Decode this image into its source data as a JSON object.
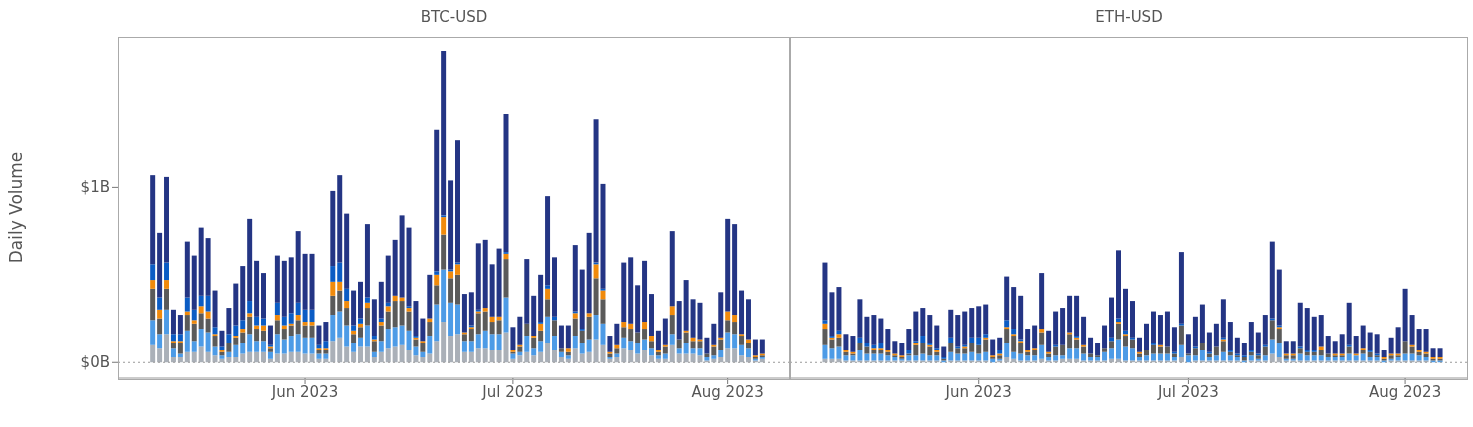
{
  "chart_data": [
    {
      "type": "bar",
      "title": "BTC-USD",
      "ylabel": "Daily Volume",
      "stacked": true,
      "x": [
        "2023-05-10",
        "2023-05-11",
        "2023-05-12",
        "2023-05-13",
        "2023-05-14",
        "2023-05-15",
        "2023-05-16",
        "2023-05-17",
        "2023-05-18",
        "2023-05-19",
        "2023-05-20",
        "2023-05-21",
        "2023-05-22",
        "2023-05-23",
        "2023-05-24",
        "2023-05-25",
        "2023-05-26",
        "2023-05-27",
        "2023-05-28",
        "2023-05-29",
        "2023-05-30",
        "2023-05-31",
        "2023-06-01",
        "2023-06-02",
        "2023-06-03",
        "2023-06-04",
        "2023-06-05",
        "2023-06-06",
        "2023-06-07",
        "2023-06-08",
        "2023-06-09",
        "2023-06-10",
        "2023-06-11",
        "2023-06-12",
        "2023-06-13",
        "2023-06-14",
        "2023-06-15",
        "2023-06-16",
        "2023-06-17",
        "2023-06-18",
        "2023-06-19",
        "2023-06-20",
        "2023-06-21",
        "2023-06-22",
        "2023-06-23",
        "2023-06-24",
        "2023-06-25",
        "2023-06-26",
        "2023-06-27",
        "2023-06-28",
        "2023-06-29",
        "2023-06-30",
        "2023-07-01",
        "2023-07-02",
        "2023-07-03",
        "2023-07-04",
        "2023-07-05",
        "2023-07-06",
        "2023-07-07",
        "2023-07-08",
        "2023-07-09",
        "2023-07-10",
        "2023-07-11",
        "2023-07-12",
        "2023-07-13",
        "2023-07-14",
        "2023-07-15",
        "2023-07-16",
        "2023-07-17",
        "2023-07-18",
        "2023-07-19",
        "2023-07-20",
        "2023-07-21",
        "2023-07-22",
        "2023-07-23",
        "2023-07-24",
        "2023-07-25",
        "2023-07-26",
        "2023-07-27",
        "2023-07-28",
        "2023-07-29",
        "2023-07-30",
        "2023-07-31",
        "2023-08-01",
        "2023-08-02",
        "2023-08-03",
        "2023-08-04",
        "2023-08-05",
        "2023-08-06"
      ],
      "series": [
        {
          "color": "#aab0b8",
          "values": [
            0.1,
            0.08,
            0.16,
            0.03,
            0.03,
            0.06,
            0.06,
            0.09,
            0.06,
            0.04,
            0.02,
            0.03,
            0.03,
            0.05,
            0.06,
            0.06,
            0.06,
            0.02,
            0.05,
            0.05,
            0.06,
            0.06,
            0.05,
            0.05,
            0.02,
            0.02,
            0.12,
            0.14,
            0.09,
            0.06,
            0.09,
            0.09,
            0.03,
            0.06,
            0.08,
            0.09,
            0.1,
            0.07,
            0.04,
            0.03,
            0.05,
            0.12,
            0.23,
            0.15,
            0.16,
            0.06,
            0.06,
            0.08,
            0.08,
            0.07,
            0.07,
            0.17,
            0.02,
            0.04,
            0.06,
            0.04,
            0.06,
            0.11,
            0.07,
            0.03,
            0.02,
            0.08,
            0.05,
            0.06,
            0.13,
            0.1,
            0.02,
            0.03,
            0.08,
            0.07,
            0.05,
            0.07,
            0.04,
            0.02,
            0.02,
            0.1,
            0.05,
            0.05,
            0.05,
            0.04,
            0.01,
            0.02,
            0.03,
            0.08,
            0.08,
            0.04,
            0.03,
            0.01,
            0.02
          ]
        },
        {
          "color": "#4d9be6",
          "values": [
            0.14,
            0.08,
            0.14,
            0.05,
            0.02,
            0.12,
            0.06,
            0.1,
            0.11,
            0.05,
            0.02,
            0.03,
            0.07,
            0.06,
            0.1,
            0.06,
            0.06,
            0.04,
            0.11,
            0.08,
            0.09,
            0.1,
            0.09,
            0.09,
            0.03,
            0.03,
            0.15,
            0.15,
            0.12,
            0.05,
            0.05,
            0.12,
            0.03,
            0.06,
            0.11,
            0.11,
            0.11,
            0.11,
            0.05,
            0.03,
            0.1,
            0.21,
            0.3,
            0.19,
            0.17,
            0.06,
            0.06,
            0.08,
            0.1,
            0.09,
            0.09,
            0.2,
            0.03,
            0.02,
            0.09,
            0.04,
            0.06,
            0.15,
            0.08,
            0.03,
            0.02,
            0.07,
            0.06,
            0.07,
            0.14,
            0.12,
            0.01,
            0.02,
            0.06,
            0.05,
            0.06,
            0.06,
            0.04,
            0.02,
            0.03,
            0.06,
            0.03,
            0.06,
            0.03,
            0.04,
            0.02,
            0.02,
            0.04,
            0.09,
            0.08,
            0.06,
            0.05,
            0.01,
            0.01
          ]
        },
        {
          "color": "#5a5a5a",
          "values": [
            0.18,
            0.09,
            0.12,
            0.03,
            0.06,
            0.09,
            0.1,
            0.09,
            0.08,
            0.06,
            0.02,
            0.05,
            0.04,
            0.06,
            0.1,
            0.07,
            0.06,
            0.02,
            0.08,
            0.06,
            0.06,
            0.08,
            0.07,
            0.07,
            0.02,
            0.02,
            0.11,
            0.12,
            0.1,
            0.05,
            0.06,
            0.1,
            0.06,
            0.09,
            0.1,
            0.15,
            0.14,
            0.11,
            0.04,
            0.05,
            0.08,
            0.11,
            0.2,
            0.14,
            0.17,
            0.04,
            0.07,
            0.12,
            0.11,
            0.07,
            0.08,
            0.22,
            0.01,
            0.03,
            0.07,
            0.06,
            0.06,
            0.1,
            0.09,
            0.02,
            0.02,
            0.1,
            0.07,
            0.13,
            0.21,
            0.14,
            0.02,
            0.03,
            0.06,
            0.07,
            0.06,
            0.06,
            0.04,
            0.02,
            0.04,
            0.11,
            0.05,
            0.06,
            0.04,
            0.04,
            0.02,
            0.05,
            0.06,
            0.07,
            0.07,
            0.05,
            0.03,
            0.01,
            0.01
          ]
        },
        {
          "color": "#f08a0c",
          "values": [
            0.05,
            0.05,
            0.05,
            0.01,
            0.01,
            0.02,
            0.02,
            0.04,
            0.04,
            0.01,
            0.01,
            0,
            0.01,
            0.02,
            0.02,
            0.02,
            0.03,
            0.01,
            0.03,
            0.02,
            0.01,
            0.03,
            0.02,
            0.02,
            0.01,
            0.01,
            0.08,
            0.05,
            0.04,
            0.02,
            0.02,
            0.03,
            0.01,
            0.02,
            0.03,
            0.03,
            0.02,
            0.02,
            0.01,
            0.01,
            0.02,
            0.06,
            0.1,
            0.04,
            0.06,
            0.01,
            0.01,
            0.01,
            0.02,
            0.03,
            0.02,
            0.03,
            0.01,
            0.01,
            0,
            0.01,
            0.04,
            0.06,
            0,
            0,
            0.02,
            0.03,
            0,
            0.02,
            0.08,
            0.05,
            0.01,
            0.02,
            0.03,
            0.03,
            0,
            0.04,
            0.03,
            0.01,
            0.01,
            0.05,
            0,
            0.01,
            0.02,
            0.01,
            0,
            0.01,
            0.01,
            0.05,
            0.04,
            0.01,
            0.02,
            0.01,
            0.01
          ]
        },
        {
          "color": "#0b5cc4",
          "values": [
            0.09,
            0.07,
            0.1,
            0.04,
            0.04,
            0.08,
            0.06,
            0.06,
            0.09,
            0.04,
            0.02,
            0.05,
            0.06,
            0.05,
            0.07,
            0.05,
            0.04,
            0.01,
            0.07,
            0.05,
            0.06,
            0.07,
            0.07,
            0.07,
            0.02,
            0.04,
            0.09,
            0.11,
            0.07,
            0.03,
            0.03,
            0.03,
            0.02,
            0.02,
            0.02,
            0,
            0,
            0.01,
            0.01,
            0,
            0,
            0.02,
            0.01,
            0.01,
            0.01,
            0,
            0.01,
            0.01,
            0,
            0,
            0,
            0.01,
            0,
            0,
            0,
            0,
            0.01,
            0.02,
            0.02,
            0,
            0,
            0.01,
            0.01,
            0,
            0.01,
            0.01,
            0,
            0,
            0,
            0,
            0,
            0,
            0,
            0,
            0,
            0,
            0,
            0,
            0,
            0,
            0,
            0,
            0,
            0,
            0,
            0,
            0,
            0,
            0
          ]
        },
        {
          "color": "#243584",
          "values": [
            0.51,
            0.37,
            0.49,
            0.14,
            0.11,
            0.32,
            0.31,
            0.39,
            0.33,
            0.21,
            0.09,
            0.15,
            0.24,
            0.31,
            0.47,
            0.32,
            0.26,
            0.11,
            0.27,
            0.32,
            0.32,
            0.41,
            0.32,
            0.32,
            0.11,
            0.11,
            0.43,
            0.5,
            0.43,
            0.2,
            0.21,
            0.42,
            0.21,
            0.21,
            0.27,
            0.32,
            0.47,
            0.45,
            0.2,
            0.13,
            0.25,
            0.81,
            0.94,
            0.51,
            0.7,
            0.22,
            0.19,
            0.38,
            0.39,
            0.3,
            0.39,
            0.79,
            0.13,
            0.16,
            0.37,
            0.23,
            0.27,
            0.51,
            0.34,
            0.13,
            0.13,
            0.38,
            0.34,
            0.46,
            0.82,
            0.6,
            0.09,
            0.12,
            0.34,
            0.38,
            0.27,
            0.35,
            0.24,
            0.11,
            0.15,
            0.43,
            0.22,
            0.29,
            0.22,
            0.21,
            0.09,
            0.12,
            0.26,
            0.53,
            0.52,
            0.25,
            0.23,
            0.09,
            0.08
          ]
        }
      ],
      "xlim": [
        "2023-05-05",
        "2023-08-10"
      ],
      "xticks": [
        {
          "value": "2023-06-01",
          "label": "Jun 2023"
        },
        {
          "value": "2023-07-01",
          "label": "Jul 2023"
        },
        {
          "value": "2023-08-01",
          "label": "Aug 2023"
        }
      ],
      "ylim": [
        -0.09,
        1.86
      ],
      "yticks": [
        {
          "value": 0,
          "label": "$0B"
        },
        {
          "value": 1,
          "label": "$1B"
        }
      ],
      "ref_lines": [
        {
          "axis": "y",
          "value": 0,
          "color": "#999999",
          "line_style": "dotted"
        }
      ]
    },
    {
      "type": "bar",
      "title": "ETH-USD",
      "stacked": true,
      "tick_labels": "x",
      "x": [
        "2023-05-10",
        "2023-05-11",
        "2023-05-12",
        "2023-05-13",
        "2023-05-14",
        "2023-05-15",
        "2023-05-16",
        "2023-05-17",
        "2023-05-18",
        "2023-05-19",
        "2023-05-20",
        "2023-05-21",
        "2023-05-22",
        "2023-05-23",
        "2023-05-24",
        "2023-05-25",
        "2023-05-26",
        "2023-05-27",
        "2023-05-28",
        "2023-05-29",
        "2023-05-30",
        "2023-05-31",
        "2023-06-01",
        "2023-06-02",
        "2023-06-03",
        "2023-06-04",
        "2023-06-05",
        "2023-06-06",
        "2023-06-07",
        "2023-06-08",
        "2023-06-09",
        "2023-06-10",
        "2023-06-11",
        "2023-06-12",
        "2023-06-13",
        "2023-06-14",
        "2023-06-15",
        "2023-06-16",
        "2023-06-17",
        "2023-06-18",
        "2023-06-19",
        "2023-06-20",
        "2023-06-21",
        "2023-06-22",
        "2023-06-23",
        "2023-06-24",
        "2023-06-25",
        "2023-06-26",
        "2023-06-27",
        "2023-06-28",
        "2023-06-29",
        "2023-06-30",
        "2023-07-01",
        "2023-07-02",
        "2023-07-03",
        "2023-07-04",
        "2023-07-05",
        "2023-07-06",
        "2023-07-07",
        "2023-07-08",
        "2023-07-09",
        "2023-07-10",
        "2023-07-11",
        "2023-07-12",
        "2023-07-13",
        "2023-07-14",
        "2023-07-15",
        "2023-07-16",
        "2023-07-17",
        "2023-07-18",
        "2023-07-19",
        "2023-07-20",
        "2023-07-21",
        "2023-07-22",
        "2023-07-23",
        "2023-07-24",
        "2023-07-25",
        "2023-07-26",
        "2023-07-27",
        "2023-07-28",
        "2023-07-29",
        "2023-07-30",
        "2023-07-31",
        "2023-08-01",
        "2023-08-02",
        "2023-08-03",
        "2023-08-04",
        "2023-08-05",
        "2023-08-06"
      ],
      "series": [
        {
          "color": "#aab0b8",
          "values": [
            0.02,
            0.02,
            0.02,
            0.01,
            0.01,
            0.01,
            0.01,
            0.01,
            0.01,
            0.01,
            0.01,
            0.01,
            0.01,
            0.01,
            0.01,
            0.01,
            0.01,
            0,
            0.01,
            0.01,
            0.01,
            0.01,
            0.01,
            0.01,
            0,
            0.01,
            0.03,
            0.02,
            0.01,
            0.01,
            0.01,
            0.02,
            0.01,
            0.01,
            0.02,
            0.02,
            0.02,
            0.01,
            0.01,
            0.01,
            0.01,
            0.02,
            0.02,
            0.01,
            0.01,
            0.01,
            0.01,
            0.01,
            0.01,
            0.01,
            0.01,
            0.03,
            0,
            0.01,
            0.01,
            0.01,
            0.01,
            0.01,
            0.01,
            0.01,
            0,
            0.01,
            0.01,
            0.01,
            0.05,
            0.03,
            0.01,
            0.01,
            0.01,
            0.01,
            0.01,
            0.01,
            0.01,
            0.01,
            0.01,
            0.01,
            0.01,
            0.01,
            0.01,
            0.01,
            0,
            0.01,
            0.01,
            0.01,
            0.01,
            0.01,
            0.01,
            0,
            0
          ]
        },
        {
          "color": "#4d9be6",
          "values": [
            0.08,
            0.06,
            0.07,
            0.03,
            0.03,
            0.06,
            0.04,
            0.04,
            0.04,
            0.03,
            0.02,
            0.01,
            0.03,
            0.03,
            0.04,
            0.03,
            0.03,
            0.01,
            0.05,
            0.04,
            0.04,
            0.05,
            0.04,
            0.05,
            0.02,
            0.01,
            0.08,
            0.04,
            0.04,
            0.03,
            0.03,
            0.08,
            0.02,
            0.03,
            0.02,
            0.06,
            0.06,
            0.04,
            0.02,
            0.02,
            0.05,
            0.06,
            0.11,
            0.08,
            0.07,
            0.02,
            0.03,
            0.04,
            0.04,
            0.04,
            0.02,
            0.07,
            0.04,
            0.03,
            0.06,
            0.02,
            0.03,
            0.05,
            0.03,
            0.02,
            0.01,
            0.03,
            0.01,
            0.03,
            0.08,
            0.08,
            0.01,
            0.01,
            0.04,
            0.03,
            0.03,
            0.03,
            0.02,
            0.02,
            0.02,
            0.04,
            0.03,
            0.04,
            0.02,
            0.02,
            0.01,
            0.01,
            0.02,
            0.04,
            0.04,
            0.03,
            0.02,
            0.01,
            0.01
          ]
        },
        {
          "color": "#5a5a5a",
          "values": [
            0.09,
            0.05,
            0.05,
            0.02,
            0.01,
            0.04,
            0.04,
            0.02,
            0.02,
            0.02,
            0.01,
            0.01,
            0.01,
            0.06,
            0.06,
            0.05,
            0.02,
            0.01,
            0.05,
            0.03,
            0.03,
            0.05,
            0.05,
            0.07,
            0.01,
            0.02,
            0.08,
            0.09,
            0.06,
            0.02,
            0.03,
            0.07,
            0.02,
            0.05,
            0.06,
            0.08,
            0.05,
            0.04,
            0.02,
            0.01,
            0.02,
            0.04,
            0.09,
            0.06,
            0.05,
            0.02,
            0.03,
            0.05,
            0.04,
            0.04,
            0.02,
            0.11,
            0.01,
            0.04,
            0.04,
            0.02,
            0.05,
            0.06,
            0.02,
            0.01,
            0.02,
            0.02,
            0.02,
            0.05,
            0.11,
            0.08,
            0.02,
            0.02,
            0.03,
            0.02,
            0.02,
            0.03,
            0.02,
            0.01,
            0.01,
            0.04,
            0,
            0.02,
            0.03,
            0.01,
            0.01,
            0.02,
            0.01,
            0.07,
            0.04,
            0.02,
            0.02,
            0.01,
            0.01
          ]
        },
        {
          "color": "#f08a0c",
          "values": [
            0.03,
            0.01,
            0.02,
            0.01,
            0.01,
            0,
            0,
            0.01,
            0.01,
            0.01,
            0.01,
            0.01,
            0,
            0.01,
            0,
            0.01,
            0.01,
            0,
            0,
            0,
            0.01,
            0,
            0,
            0.01,
            0.01,
            0.01,
            0.01,
            0.01,
            0.01,
            0.01,
            0.01,
            0.02,
            0.01,
            0,
            0,
            0.01,
            0.01,
            0.01,
            0,
            0,
            0,
            0,
            0.01,
            0.01,
            0,
            0.01,
            0,
            0,
            0.01,
            0,
            0,
            0,
            0,
            0,
            0,
            0,
            0,
            0.01,
            0,
            0,
            0,
            0,
            0,
            0,
            0,
            0.01,
            0.01,
            0.01,
            0,
            0,
            0,
            0.02,
            0,
            0.01,
            0.01,
            0,
            0.01,
            0.01,
            0,
            0,
            0.01,
            0.01,
            0.01,
            0,
            0.01,
            0.01,
            0.01,
            0.01,
            0.01
          ]
        },
        {
          "color": "#0b5cc4",
          "values": [
            0.02,
            0.01,
            0.02,
            0,
            0,
            0.03,
            0.02,
            0.02,
            0.03,
            0,
            0,
            0,
            0.02,
            0.01,
            0.04,
            0.01,
            0.01,
            0.01,
            0.03,
            0.01,
            0.01,
            0.03,
            0.04,
            0.02,
            0,
            0.02,
            0.04,
            0.03,
            0.01,
            0,
            0,
            0,
            0,
            0.01,
            0,
            0,
            0.01,
            0,
            0,
            0,
            0,
            0.02,
            0.02,
            0.02,
            0.01,
            0,
            0,
            0.01,
            0,
            0,
            0.01,
            0.01,
            0,
            0.01,
            0,
            0.01,
            0,
            0.01,
            0.01,
            0.01,
            0.01,
            0.01,
            0.01,
            0.01,
            0.01,
            0.01,
            0,
            0,
            0.01,
            0.01,
            0.01,
            0,
            0,
            0,
            0,
            0.01,
            0,
            0,
            0.01,
            0.01,
            0,
            0,
            0,
            0,
            0,
            0,
            0,
            0,
            0
          ]
        },
        {
          "color": "#243584",
          "values": [
            0.33,
            0.25,
            0.25,
            0.09,
            0.09,
            0.22,
            0.15,
            0.17,
            0.14,
            0.12,
            0.07,
            0.07,
            0.12,
            0.17,
            0.16,
            0.16,
            0.13,
            0.06,
            0.16,
            0.18,
            0.19,
            0.17,
            0.18,
            0.17,
            0.09,
            0.07,
            0.25,
            0.24,
            0.25,
            0.12,
            0.13,
            0.32,
            0.12,
            0.19,
            0.21,
            0.21,
            0.23,
            0.16,
            0.09,
            0.07,
            0.13,
            0.23,
            0.39,
            0.24,
            0.21,
            0.08,
            0.15,
            0.18,
            0.17,
            0.2,
            0.14,
            0.41,
            0.11,
            0.17,
            0.22,
            0.11,
            0.13,
            0.22,
            0.16,
            0.09,
            0.07,
            0.16,
            0.12,
            0.17,
            0.44,
            0.32,
            0.07,
            0.07,
            0.25,
            0.24,
            0.19,
            0.18,
            0.1,
            0.07,
            0.11,
            0.24,
            0.1,
            0.13,
            0.1,
            0.11,
            0.04,
            0.09,
            0.15,
            0.3,
            0.17,
            0.12,
            0.13,
            0.05,
            0.05
          ]
        }
      ],
      "xlim": [
        "2023-05-05",
        "2023-08-10"
      ],
      "xticks": [
        {
          "value": "2023-06-01",
          "label": "Jun 2023"
        },
        {
          "value": "2023-07-01",
          "label": "Jul 2023"
        },
        {
          "value": "2023-08-01",
          "label": "Aug 2023"
        }
      ],
      "ylim": [
        -0.09,
        1.86
      ],
      "ref_lines": [
        {
          "axis": "y",
          "value": 0,
          "color": "#999999",
          "line_style": "dotted"
        }
      ]
    }
  ]
}
